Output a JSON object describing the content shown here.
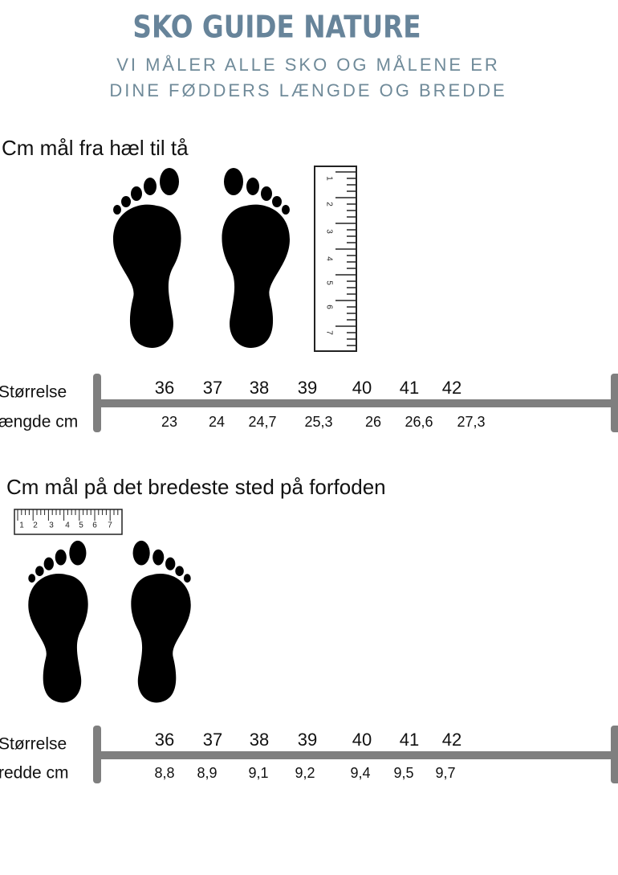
{
  "header": {
    "title": "SKO GUIDE NATURE",
    "subtitle": [
      "VI MÅLER ALLE SKO OG MÅLENE ER",
      "DINE FØDDERS LÆNGDE  OG BREDDE"
    ]
  },
  "sections": [
    {
      "heading": "Cm mål fra hæl til tå",
      "ruler": [
        "1",
        "2",
        "3",
        "4",
        "5",
        "6",
        "7"
      ],
      "row_labels": [
        "Størrelse",
        "ængde cm"
      ],
      "sizes": [
        "36",
        "37",
        "38",
        "39",
        "40",
        "41",
        "42"
      ],
      "measures": [
        "23",
        "24",
        "24,7",
        "25,3",
        "26",
        "26,6",
        "27,3"
      ]
    },
    {
      "heading": "Cm mål på det bredeste sted på forfoden",
      "ruler": [
        "1",
        "2",
        "3",
        "4",
        "5",
        "6",
        "7"
      ],
      "row_labels": [
        "Størrelse",
        "redde cm"
      ],
      "sizes": [
        "36",
        "37",
        "38",
        "39",
        "40",
        "41",
        "42"
      ],
      "measures": [
        "8,8",
        "8,9",
        "9,1",
        "9,2",
        "9,4",
        "9,5",
        "9,7"
      ]
    }
  ]
}
